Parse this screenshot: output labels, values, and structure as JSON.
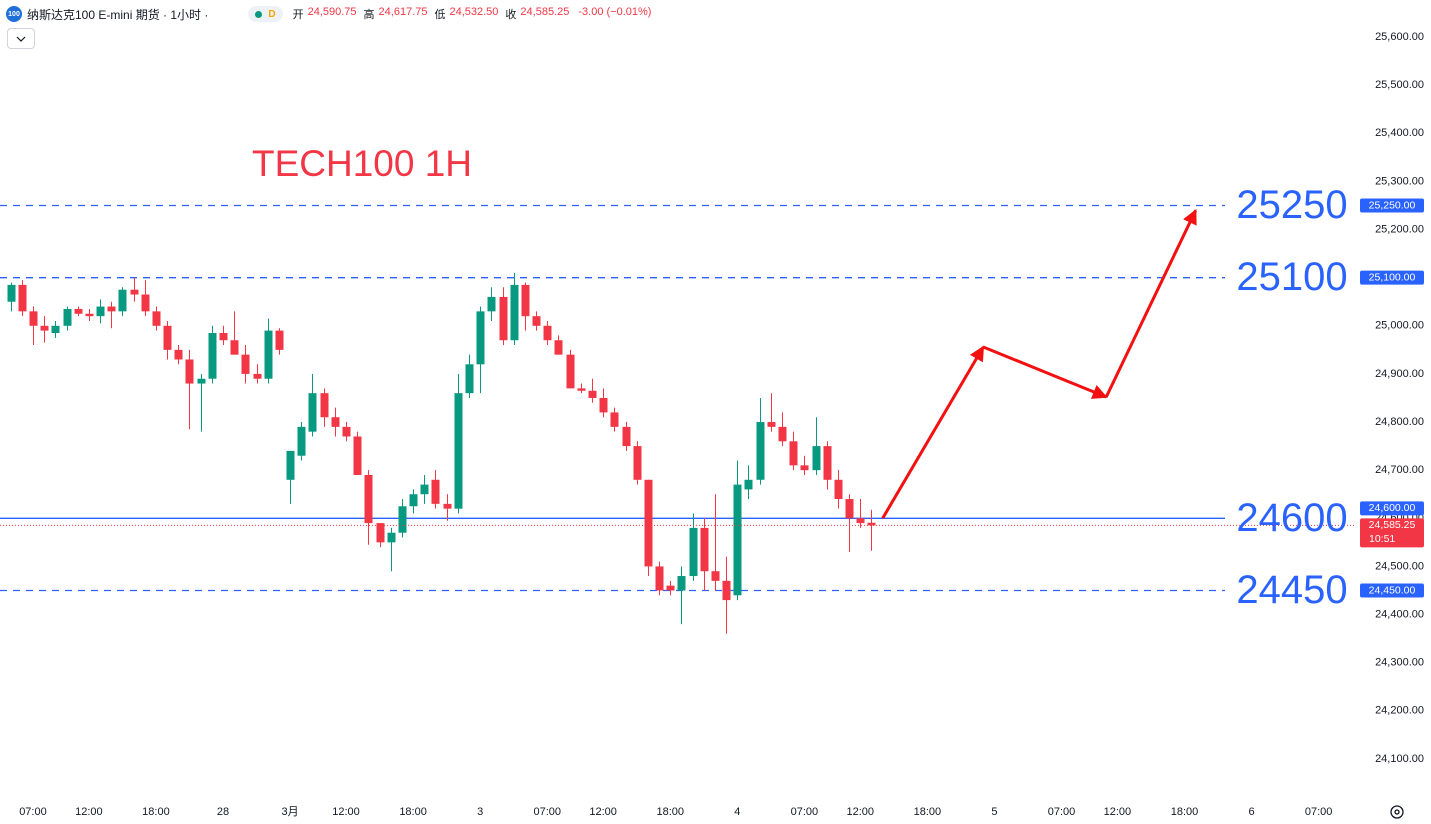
{
  "header": {
    "symbol_icon": "100",
    "title": "纳斯达克100 E-mini 期货 · 1小时 ·",
    "badge": "D",
    "ohlc": [
      {
        "label": "开",
        "value": "24,590.75"
      },
      {
        "label": "高",
        "value": "24,617.75"
      },
      {
        "label": "低",
        "value": "24,532.50"
      },
      {
        "label": "收",
        "value": "24,585.25"
      }
    ],
    "change": "-3.00 (−0.01%)"
  },
  "chart_data": {
    "type": "candlestick",
    "annotation": "TECH100 1H",
    "categories": [
      null,
      null,
      "07:00",
      null,
      null,
      null,
      null,
      "12:00",
      null,
      null,
      null,
      null,
      null,
      "18:00",
      null,
      null,
      null,
      null,
      null,
      "28",
      null,
      null,
      null,
      null,
      null,
      "3月",
      null,
      null,
      null,
      null,
      "12:00",
      null,
      null,
      null,
      null,
      null,
      "18:00",
      null,
      null,
      null,
      null,
      null,
      "3",
      null,
      null,
      null,
      null,
      null,
      "07:00",
      null,
      null,
      null,
      null,
      "12:00",
      null,
      null,
      null,
      null,
      null,
      "18:00",
      null,
      null,
      null,
      null,
      null,
      "4",
      null,
      null,
      null,
      null,
      null,
      "07:00",
      null,
      null,
      null,
      null,
      "12:00",
      null,
      null,
      null,
      null,
      null,
      "18:00",
      null,
      null,
      null,
      null,
      null,
      "5",
      null,
      null,
      null,
      null,
      null,
      "07:00",
      null,
      null,
      null,
      null,
      "12:00",
      null,
      null,
      null,
      null,
      null,
      "18:00",
      null,
      null,
      null,
      null,
      null,
      "6",
      null,
      null,
      null,
      null,
      null,
      "07:00",
      null
    ],
    "open": [
      25050,
      25085,
      25030,
      25000,
      24985,
      25000,
      25035,
      25025,
      25020,
      25040,
      25030,
      25075,
      25065,
      25030,
      25000,
      24950,
      24930,
      24880,
      24890,
      24985,
      24970,
      24940,
      24900,
      24890,
      24990,
      24680,
      24730,
      24780,
      24860,
      24810,
      24790,
      24770,
      24690,
      24590,
      24550,
      24570,
      24625,
      24650,
      24680,
      24630,
      24620,
      24860,
      24920,
      25030,
      25060,
      24970,
      25085,
      25020,
      25000,
      24970,
      24940,
      24870,
      24865,
      24850,
      24820,
      24790,
      24750,
      24680,
      24500,
      24460,
      24450,
      24480,
      24580,
      24490,
      24470,
      24440,
      24660,
      24680,
      24800,
      24790,
      24760,
      24710,
      24700,
      24750,
      24680,
      24640,
      24600,
      24590.75,
      null,
      null,
      null,
      null,
      null,
      null,
      null,
      null,
      null,
      null,
      null,
      null,
      null,
      null,
      null,
      null,
      null,
      null,
      null,
      null,
      null,
      null,
      null,
      null,
      null,
      null,
      null,
      null,
      null,
      null,
      null,
      null,
      null,
      null,
      null,
      null,
      null,
      null,
      null,
      null,
      null
    ],
    "high": [
      25090,
      25095,
      25040,
      25020,
      25010,
      25040,
      25040,
      25035,
      25055,
      25050,
      25080,
      25100,
      25095,
      25040,
      25010,
      24960,
      24950,
      24900,
      25000,
      25000,
      25030,
      24960,
      24920,
      25015,
      24995,
      24740,
      24800,
      24900,
      24870,
      24830,
      24800,
      24780,
      24700,
      24590,
      24580,
      24640,
      24660,
      24690,
      24700,
      24650,
      24900,
      24940,
      25040,
      25080,
      25080,
      25110,
      25090,
      25030,
      25010,
      24980,
      24950,
      24880,
      24890,
      24870,
      24830,
      24800,
      24760,
      24680,
      24510,
      24470,
      24500,
      24610,
      24600,
      24650,
      24520,
      24720,
      24710,
      24850,
      24860,
      24820,
      24780,
      24730,
      24810,
      24760,
      24700,
      24650,
      24640,
      24617.75,
      null,
      null,
      null,
      null,
      null,
      null,
      null,
      null,
      null,
      null,
      null,
      null,
      null,
      null,
      null,
      null,
      null,
      null,
      null,
      null,
      null,
      null,
      null,
      null,
      null,
      null,
      null,
      null,
      null,
      null,
      null,
      null,
      null,
      null,
      null,
      null,
      null,
      null,
      null,
      null,
      null
    ],
    "low": [
      25030,
      25020,
      24960,
      24965,
      24975,
      24990,
      25020,
      25010,
      25005,
      24995,
      25020,
      25050,
      25020,
      24990,
      24930,
      24920,
      24785,
      24780,
      24880,
      24960,
      24940,
      24880,
      24880,
      24880,
      24940,
      24630,
      24720,
      24770,
      24790,
      24770,
      24760,
      24690,
      24545,
      24540,
      24490,
      24560,
      24610,
      24630,
      24620,
      24595,
      24610,
      24850,
      24860,
      25010,
      24960,
      24960,
      24990,
      24990,
      24960,
      24940,
      24870,
      24860,
      24840,
      24810,
      24780,
      24740,
      24670,
      24480,
      24440,
      24440,
      24380,
      24470,
      24450,
      24450,
      24360,
      24430,
      24640,
      24670,
      24780,
      24750,
      24700,
      24690,
      24690,
      24660,
      24620,
      24530,
      24580,
      24532.5,
      null,
      null,
      null,
      null,
      null,
      null,
      null,
      null,
      null,
      null,
      null,
      null,
      null,
      null,
      null,
      null,
      null,
      null,
      null,
      null,
      null,
      null,
      null,
      null,
      null,
      null,
      null,
      null,
      null,
      null,
      null,
      null,
      null,
      null,
      null,
      null,
      null,
      null,
      null,
      null,
      null
    ],
    "close": [
      25085,
      25030,
      25000,
      24990,
      25000,
      25035,
      25025,
      25020,
      25040,
      25030,
      25075,
      25065,
      25030,
      25000,
      24950,
      24930,
      24880,
      24890,
      24985,
      24970,
      24940,
      24900,
      24890,
      24990,
      24950,
      24740,
      24790,
      24860,
      24810,
      24790,
      24770,
      24690,
      24590,
      24550,
      24570,
      24625,
      24650,
      24670,
      24630,
      24620,
      24860,
      24920,
      25030,
      25060,
      24970,
      25085,
      25020,
      25000,
      24970,
      24940,
      24870,
      24865,
      24850,
      24820,
      24790,
      24750,
      24680,
      24500,
      24450,
      24450,
      24480,
      24580,
      24490,
      24470,
      24430,
      24670,
      24680,
      24800,
      24790,
      24760,
      24710,
      24700,
      24750,
      24680,
      24640,
      24600,
      24590,
      24585.25,
      null,
      null,
      null,
      null,
      null,
      null,
      null,
      null,
      null,
      null,
      null,
      null,
      null,
      null,
      null,
      null,
      null,
      null,
      null,
      null,
      null,
      null,
      null,
      null,
      null,
      null,
      null,
      null,
      null,
      null,
      null,
      null,
      null,
      null,
      null,
      null,
      null,
      null,
      null,
      null,
      null
    ],
    "up_color": "#089981",
    "down_color": "#f23645",
    "ylim": [
      24025,
      25677
    ],
    "yticks": [
      {
        "value": 24100,
        "label": "24,100.00"
      },
      {
        "value": 24200,
        "label": "24,200.00"
      },
      {
        "value": 24300,
        "label": "24,300.00"
      },
      {
        "value": 24400,
        "label": "24,400.00"
      },
      {
        "value": 24500,
        "label": "24,500.00"
      },
      {
        "value": 24600,
        "label": "24,600.00"
      },
      {
        "value": 24700,
        "label": "24,700.00"
      },
      {
        "value": 24800,
        "label": "24,800.00"
      },
      {
        "value": 24900,
        "label": "24,900.00"
      },
      {
        "value": 25000,
        "label": "25,000.00"
      },
      {
        "value": 25100,
        "label": "25,100.00"
      },
      {
        "value": 25200,
        "label": "25,200.00"
      },
      {
        "value": 25300,
        "label": "25,300.00"
      },
      {
        "value": 25400,
        "label": "25,400.00"
      },
      {
        "value": 25500,
        "label": "25,500.00"
      },
      {
        "value": 25600,
        "label": "25,600.00"
      }
    ],
    "levels": [
      {
        "value": 25250,
        "label": "25,250.00",
        "style": "dashed"
      },
      {
        "value": 25100,
        "label": "25,100.00",
        "style": "dashed"
      },
      {
        "value": 24600,
        "label": "24,600.00",
        "style": "solid"
      },
      {
        "value": 24450,
        "label": "24,450.00",
        "style": "dashed"
      }
    ],
    "level_color": "#2962ff",
    "last_price": {
      "value": 24585.25,
      "label": "24,585.25",
      "countdown": "10:51"
    },
    "projection": {
      "color": "#f21010",
      "values": [
        null,
        null,
        null,
        null,
        null,
        null,
        null,
        null,
        null,
        null,
        null,
        null,
        null,
        null,
        null,
        null,
        null,
        null,
        null,
        null,
        null,
        null,
        null,
        null,
        null,
        null,
        null,
        null,
        null,
        null,
        null,
        null,
        null,
        null,
        null,
        null,
        null,
        null,
        null,
        null,
        null,
        null,
        null,
        null,
        null,
        null,
        null,
        null,
        null,
        null,
        null,
        null,
        null,
        null,
        null,
        null,
        null,
        null,
        null,
        null,
        null,
        null,
        null,
        null,
        null,
        null,
        null,
        null,
        null,
        null,
        null,
        null,
        null,
        null,
        null,
        null,
        null,
        null,
        24600,
        null,
        null,
        null,
        null,
        null,
        null,
        null,
        null,
        24956,
        null,
        null,
        null,
        null,
        null,
        null,
        null,
        null,
        null,
        null,
        24852,
        null,
        null,
        null,
        null,
        null,
        null,
        null,
        25240,
        null,
        null,
        null,
        null,
        null,
        null,
        null,
        null,
        null,
        null,
        null,
        null
      ]
    }
  }
}
